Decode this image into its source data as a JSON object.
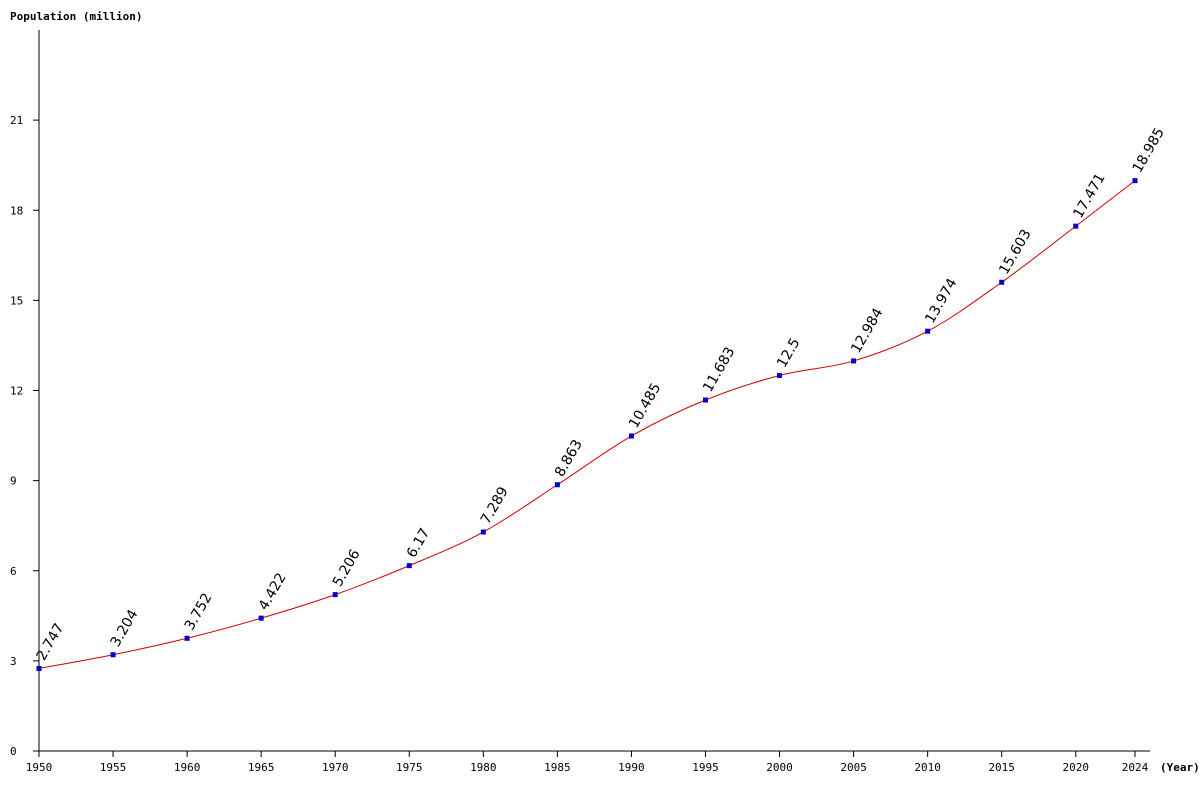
{
  "chart_data": {
    "type": "line",
    "ylabel": "Population (million)",
    "xlabel": "(Year)",
    "x": [
      1950,
      1955,
      1960,
      1965,
      1970,
      1975,
      1980,
      1985,
      1990,
      1995,
      2000,
      2005,
      2010,
      2015,
      2020,
      2024
    ],
    "series": [
      {
        "values": [
          2.747,
          3.204,
          3.752,
          4.422,
          5.206,
          6.17,
          7.289,
          8.863,
          10.485,
          11.683,
          12.5,
          12.984,
          13.974,
          15.603,
          17.471,
          18.985
        ],
        "labels": [
          "2.747",
          "3.204",
          "3.752",
          "4.422",
          "5.206",
          "6.17",
          "7.289",
          "8.863",
          "10.485",
          "11.683",
          "12.5",
          "12.984",
          "13.974",
          "15.603",
          "17.471",
          "18.985"
        ]
      }
    ],
    "xticks": [
      "1950",
      "1955",
      "1960",
      "1965",
      "1970",
      "1975",
      "1980",
      "1985",
      "1990",
      "1995",
      "2000",
      "2005",
      "2010",
      "2015",
      "2020",
      "2024"
    ],
    "yticks": [
      0,
      3,
      6,
      9,
      12,
      15,
      18,
      21
    ],
    "ylim": [
      0,
      24
    ],
    "xlim": [
      1950,
      2024
    ],
    "grid": false,
    "colors": {
      "line": "#cc0000",
      "marker": "#0000cc",
      "axis": "#000000"
    }
  }
}
